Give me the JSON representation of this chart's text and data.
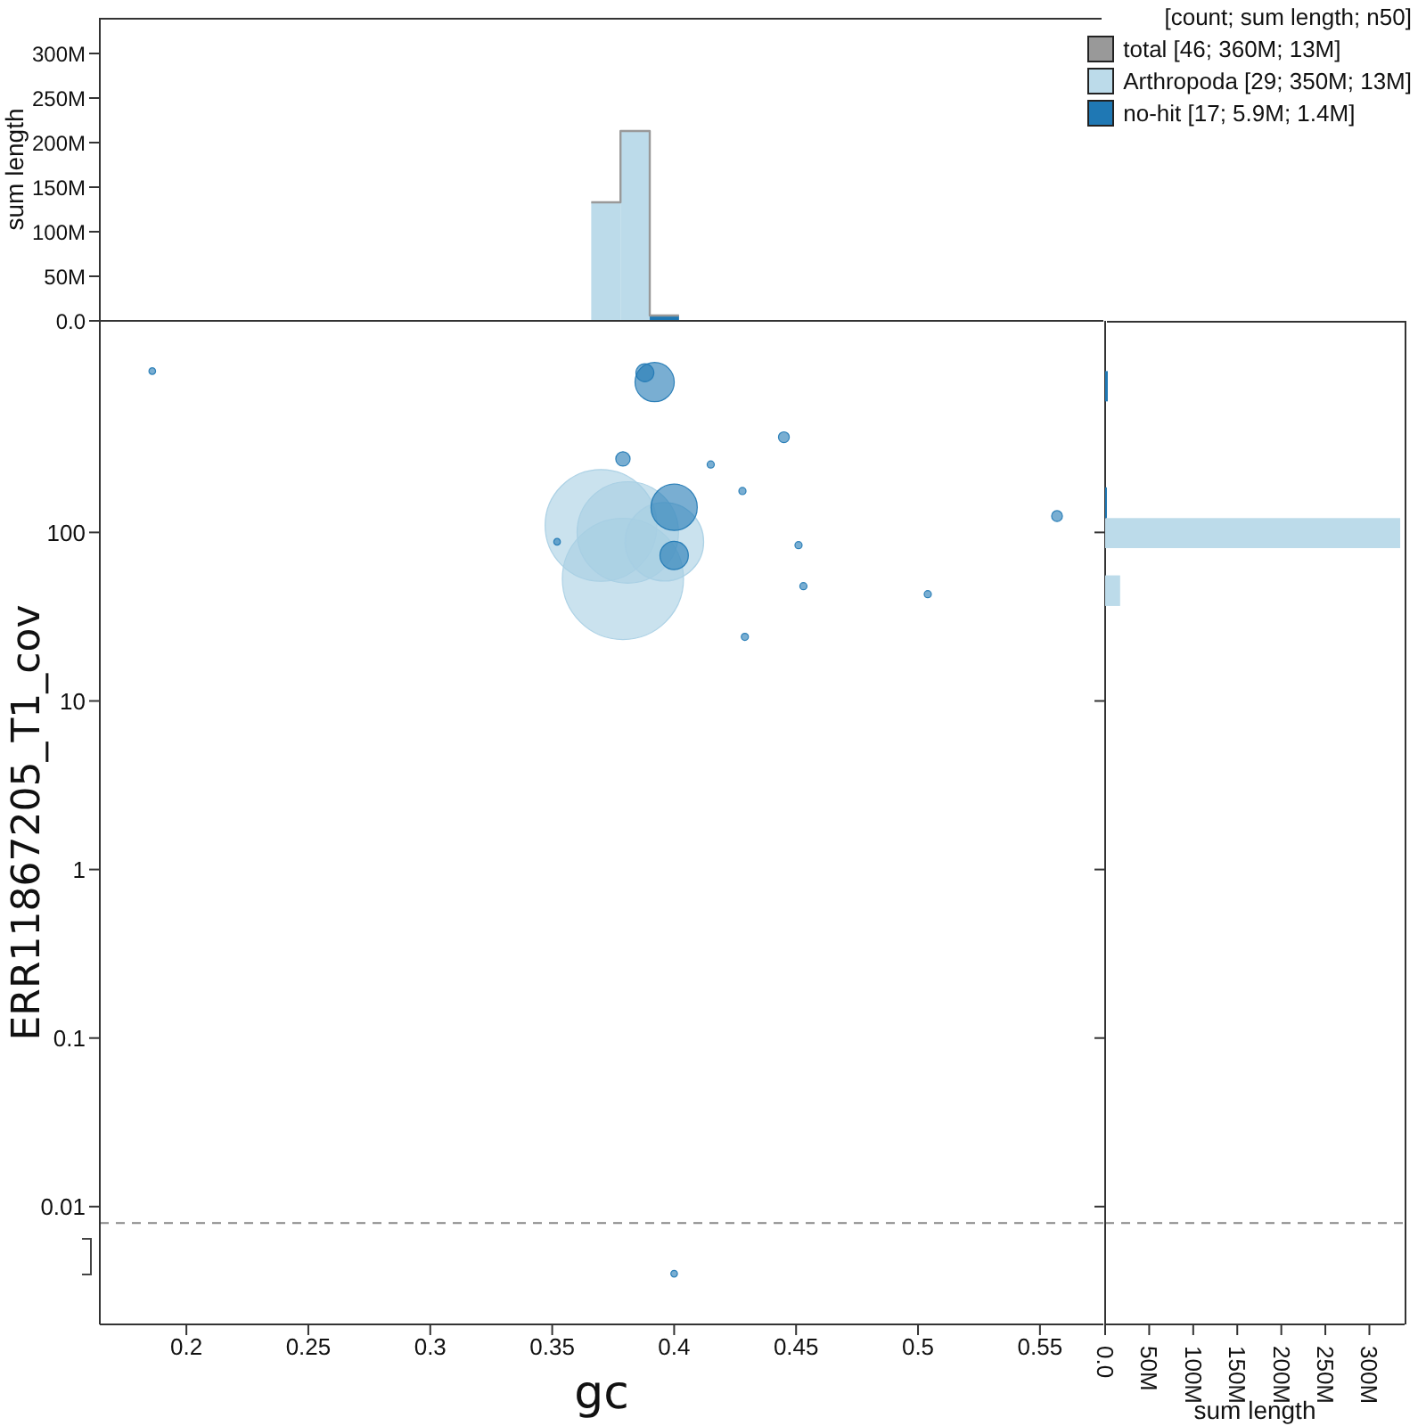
{
  "chart_data": [
    {
      "type": "histogram",
      "ylabel": "sum length",
      "bins": [
        0.366,
        0.378,
        0.39,
        0.402
      ],
      "xlim": [
        0.1645,
        0.576
      ],
      "ylim": [
        0,
        340
      ],
      "yticks": [
        {
          "value": 0,
          "label": "0.0"
        },
        {
          "value": 50,
          "label": "50M"
        },
        {
          "value": 100,
          "label": "100M"
        },
        {
          "value": 150,
          "label": "150M"
        },
        {
          "value": 200,
          "label": "200M"
        },
        {
          "value": 250,
          "label": "250M"
        },
        {
          "value": 300,
          "label": "300M"
        }
      ],
      "tick_labels": "y",
      "legend": "top right",
      "legend_title": "[count; sum length; n50]",
      "series": [
        {
          "name": "total [46; 360M; 13M]",
          "type": "step",
          "color": "#999999",
          "x": [
            0.366,
            0.378,
            0.39,
            0.402
          ],
          "values": [
            133,
            213,
            6,
            6
          ]
        },
        {
          "name": "Arthropoda [29; 350M; 13M]",
          "color": "#bcdbea",
          "values": [
            133,
            212,
            0
          ]
        },
        {
          "name": "no-hit [17; 5.9M; 1.4M]",
          "color": "#1f78b4",
          "values": [
            0,
            1,
            6
          ]
        }
      ]
    },
    {
      "type": "bubble",
      "xlabel": "gc",
      "ylabel": "ERR11867205_T1_cov",
      "log": "y",
      "xlim": [
        0.1645,
        0.576
      ],
      "xticks": [
        0.2,
        0.25,
        0.3,
        0.35,
        0.4,
        0.45,
        0.5,
        0.55
      ],
      "ylim": [
        0.002,
        1800
      ],
      "yticks": [
        0.01,
        0.1,
        1,
        10,
        100
      ],
      "ref_lines": [
        {
          "axis": "y",
          "value": 0.008,
          "line_style": "dashed",
          "color": "#888888"
        }
      ],
      "series": [
        {
          "color": "#a6cee3",
          "x": [
            0.379,
            0.37,
            0.381,
            0.396
          ],
          "values": [
            53,
            110,
            100,
            88
          ],
          "sizes": [
            1,
            0.85,
            0.7,
            0.42
          ]
        },
        {
          "color": "#1f78b4",
          "x": [
            0.388,
            0.392,
            0.379,
            0.415,
            0.445,
            0.428,
            0.4,
            0.4,
            0.451,
            0.453,
            0.504,
            0.557,
            0.429,
            0.352,
            0.186,
            0.4
          ],
          "values": [
            886,
            780,
            273,
            253,
            367,
            176,
            141,
            73,
            84,
            48,
            43,
            125,
            24,
            88,
            906,
            0.004
          ],
          "sizes": [
            0.022,
            0.105,
            0.014,
            0.0035,
            0.008,
            0.0035,
            0.146,
            0.055,
            0.0035,
            0.0035,
            0.0035,
            0.008,
            0.0035,
            0.003,
            0.003,
            0.003
          ]
        }
      ]
    },
    {
      "type": "histogram",
      "orientation": "horizontal",
      "xlabel": "sum length",
      "log": "y",
      "bins": [
        36.6,
        55.6,
        80.7,
        121.6,
        185,
        599,
        906
      ],
      "ylim": [
        0.002,
        1800
      ],
      "xlim": [
        0,
        340
      ],
      "xticks": [
        {
          "value": 0,
          "label": "0.0"
        },
        {
          "value": 50,
          "label": "50M"
        },
        {
          "value": 100,
          "label": "100M"
        },
        {
          "value": 150,
          "label": "150M"
        },
        {
          "value": 200,
          "label": "200M"
        },
        {
          "value": 250,
          "label": "250M"
        },
        {
          "value": 300,
          "label": "300M"
        }
      ],
      "yticks": [
        {
          "value": 0.01,
          "label": null
        },
        {
          "value": 0.1,
          "label": null
        },
        {
          "value": 1,
          "label": null
        },
        {
          "value": 10,
          "label": null
        },
        {
          "value": 100,
          "label": null
        }
      ],
      "tick_labels": "x",
      "ref_lines": [
        {
          "axis": "y",
          "value": 0.008,
          "line_style": "dashed",
          "color": "#888888"
        }
      ],
      "series": [
        {
          "color": "#bcdbea",
          "values": [
            17,
            0,
            335,
            0,
            0,
            0
          ]
        },
        {
          "color": "#1f78b4",
          "values": [
            0,
            0,
            0,
            2,
            0,
            3
          ]
        }
      ]
    }
  ]
}
